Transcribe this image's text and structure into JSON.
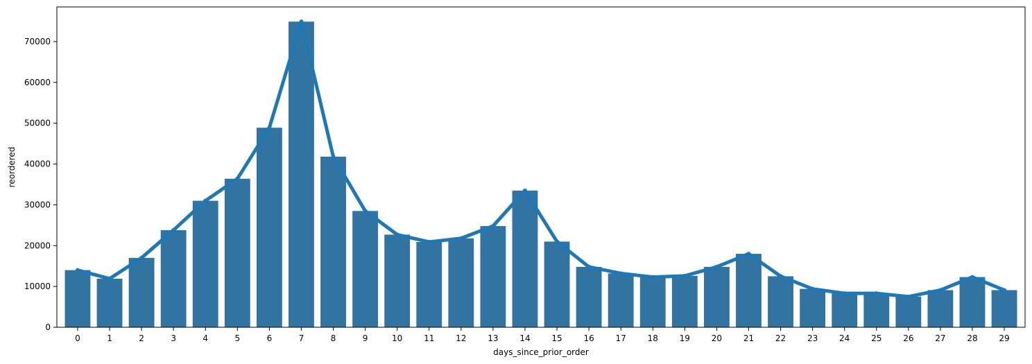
{
  "chart_data": {
    "type": "bar",
    "title": "",
    "xlabel": "days_since_prior_order",
    "ylabel": "reordered",
    "categories": [
      "0",
      "1",
      "2",
      "3",
      "4",
      "5",
      "6",
      "7",
      "8",
      "9",
      "10",
      "11",
      "12",
      "13",
      "14",
      "15",
      "16",
      "17",
      "18",
      "19",
      "20",
      "21",
      "22",
      "23",
      "24",
      "25",
      "26",
      "27",
      "28",
      "29"
    ],
    "series": [
      {
        "type": "bar",
        "values": [
          14000,
          11900,
          17000,
          23800,
          31000,
          36400,
          48900,
          74900,
          41800,
          28500,
          22700,
          20900,
          21800,
          24800,
          33500,
          21000,
          14800,
          13200,
          12300,
          12600,
          14800,
          18000,
          12500,
          9400,
          8300,
          8300,
          7500,
          9100,
          12300,
          9100
        ]
      },
      {
        "type": "line",
        "values": [
          14000,
          11900,
          17000,
          23800,
          31000,
          36400,
          48900,
          74900,
          41800,
          28500,
          22700,
          20900,
          21800,
          24800,
          33500,
          21000,
          14800,
          13200,
          12300,
          12600,
          14800,
          18000,
          12500,
          9400,
          8300,
          8300,
          7500,
          9100,
          12300,
          9100
        ]
      }
    ],
    "yticks": [
      0,
      10000,
      20000,
      30000,
      40000,
      50000,
      60000,
      70000
    ],
    "ylim": [
      0,
      78500
    ],
    "colors": {
      "bar": "#3274a1",
      "line": "#1f77b4"
    },
    "grid": false,
    "legend": "none"
  }
}
